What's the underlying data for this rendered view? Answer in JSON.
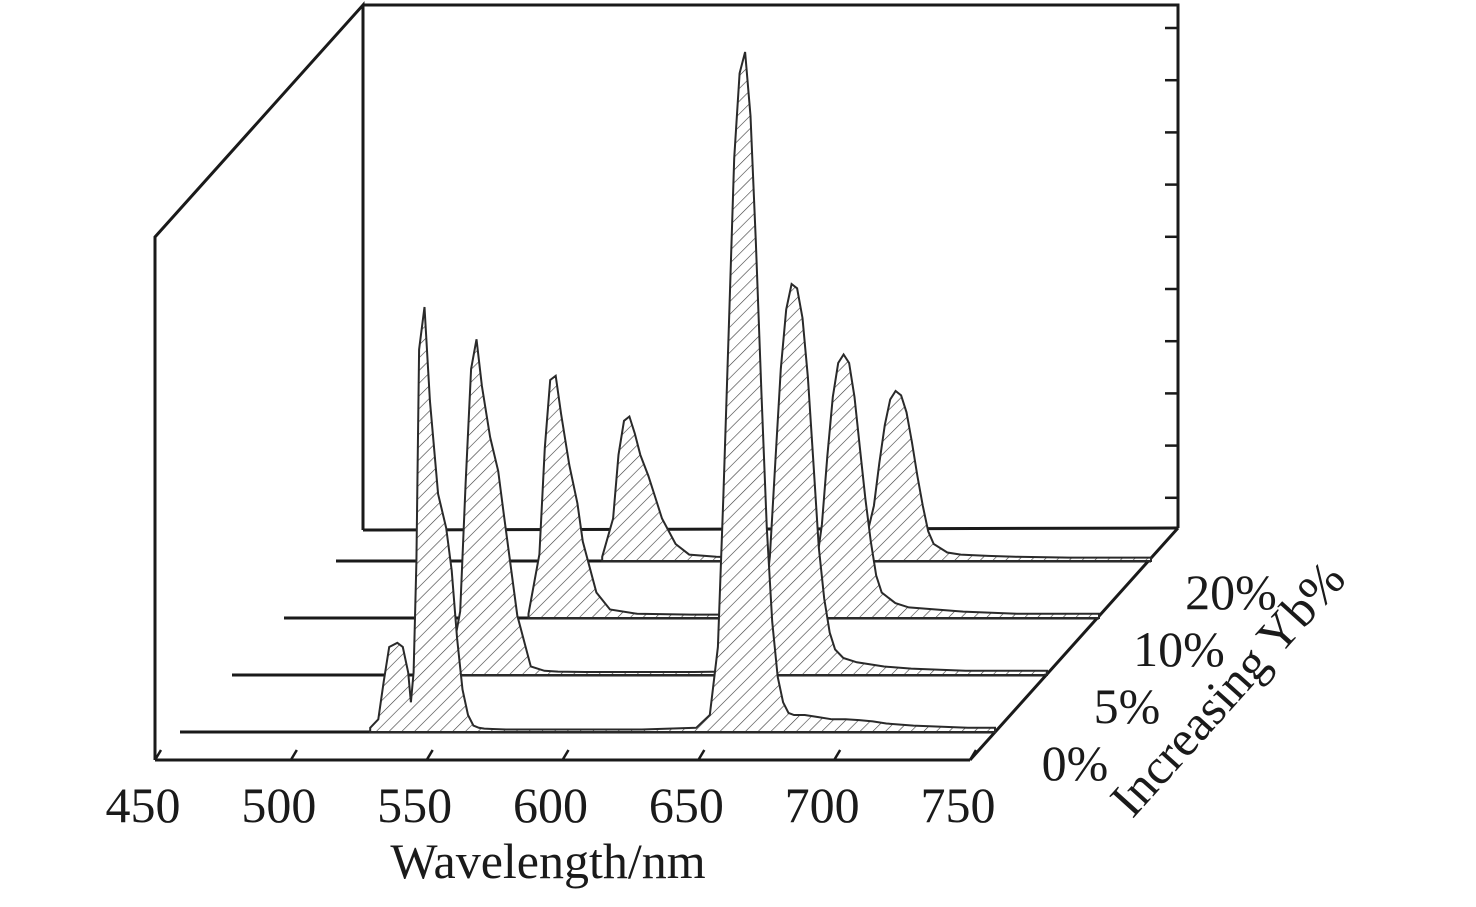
{
  "chart_data": {
    "type": "area",
    "xlabel": "Wavelength/nm",
    "zlabel": "Increasing Yb%",
    "xlim": [
      450,
      750
    ],
    "xticks": [
      450,
      500,
      550,
      600,
      650,
      700,
      750
    ],
    "xtick_labels": [
      "450",
      "500",
      "550",
      "600",
      "650",
      "700",
      "750"
    ],
    "grid": false,
    "legend": "none",
    "series": [
      {
        "name": "0%",
        "x": [
          520,
          523,
          525,
          527,
          530,
          532,
          534,
          535,
          536,
          537,
          538,
          540,
          542,
          545,
          548,
          550,
          552,
          554,
          556,
          558,
          560,
          562,
          565,
          570,
          580,
          600,
          620,
          630,
          640,
          645,
          648,
          650,
          652,
          654,
          656,
          658,
          660,
          662,
          664,
          666,
          668,
          670,
          672,
          674,
          676,
          680,
          685,
          690,
          695,
          700,
          705,
          710,
          720,
          740,
          750
        ],
        "y": [
          0.01,
          0.03,
          0.12,
          0.2,
          0.21,
          0.2,
          0.14,
          0.07,
          0.14,
          0.4,
          0.9,
          1.0,
          0.78,
          0.56,
          0.48,
          0.38,
          0.22,
          0.1,
          0.04,
          0.015,
          0.01,
          0.008,
          0.007,
          0.006,
          0.006,
          0.006,
          0.006,
          0.008,
          0.01,
          0.04,
          0.2,
          0.55,
          0.95,
          1.35,
          1.55,
          1.6,
          1.45,
          1.15,
          0.8,
          0.48,
          0.26,
          0.13,
          0.07,
          0.045,
          0.04,
          0.04,
          0.035,
          0.03,
          0.03,
          0.028,
          0.025,
          0.02,
          0.015,
          0.01,
          0.01
        ]
      },
      {
        "name": "5%",
        "x": [
          530,
          534,
          536,
          538,
          540,
          542,
          545,
          548,
          550,
          555,
          560,
          565,
          570,
          580,
          600,
          620,
          630,
          640,
          645,
          648,
          650,
          652,
          654,
          656,
          658,
          660,
          662,
          664,
          666,
          668,
          670,
          672,
          675,
          680,
          685,
          690,
          700,
          720,
          750
        ],
        "y": [
          0.01,
          0.15,
          0.45,
          0.72,
          0.79,
          0.68,
          0.56,
          0.48,
          0.38,
          0.14,
          0.02,
          0.01,
          0.008,
          0.007,
          0.007,
          0.007,
          0.008,
          0.015,
          0.1,
          0.28,
          0.5,
          0.72,
          0.86,
          0.92,
          0.91,
          0.84,
          0.7,
          0.5,
          0.3,
          0.18,
          0.1,
          0.06,
          0.04,
          0.03,
          0.025,
          0.02,
          0.015,
          0.01,
          0.01
        ]
      },
      {
        "name": "10%",
        "x": [
          540,
          544,
          546,
          548,
          550,
          552,
          555,
          558,
          560,
          565,
          570,
          580,
          600,
          620,
          630,
          640,
          645,
          648,
          650,
          652,
          654,
          656,
          658,
          660,
          662,
          664,
          666,
          668,
          670,
          675,
          680,
          690,
          700,
          720,
          750
        ],
        "y": [
          0.01,
          0.15,
          0.4,
          0.56,
          0.57,
          0.48,
          0.36,
          0.27,
          0.18,
          0.06,
          0.02,
          0.01,
          0.008,
          0.008,
          0.008,
          0.015,
          0.08,
          0.22,
          0.38,
          0.52,
          0.6,
          0.62,
          0.6,
          0.52,
          0.4,
          0.28,
          0.18,
          0.1,
          0.06,
          0.035,
          0.025,
          0.02,
          0.015,
          0.01,
          0.01
        ]
      },
      {
        "name": "20%",
        "x": [
          548,
          552,
          554,
          556,
          558,
          560,
          562,
          565,
          568,
          570,
          575,
          580,
          590,
          600,
          620,
          630,
          640,
          645,
          648,
          650,
          652,
          654,
          656,
          658,
          660,
          662,
          664,
          666,
          668,
          670,
          675,
          680,
          690,
          700,
          720,
          750
        ],
        "y": [
          0.01,
          0.1,
          0.25,
          0.33,
          0.34,
          0.3,
          0.25,
          0.2,
          0.14,
          0.1,
          0.04,
          0.015,
          0.01,
          0.008,
          0.008,
          0.008,
          0.012,
          0.05,
          0.13,
          0.23,
          0.32,
          0.38,
          0.4,
          0.39,
          0.35,
          0.28,
          0.2,
          0.13,
          0.07,
          0.04,
          0.02,
          0.015,
          0.012,
          0.01,
          0.008,
          0.008
        ]
      }
    ]
  }
}
